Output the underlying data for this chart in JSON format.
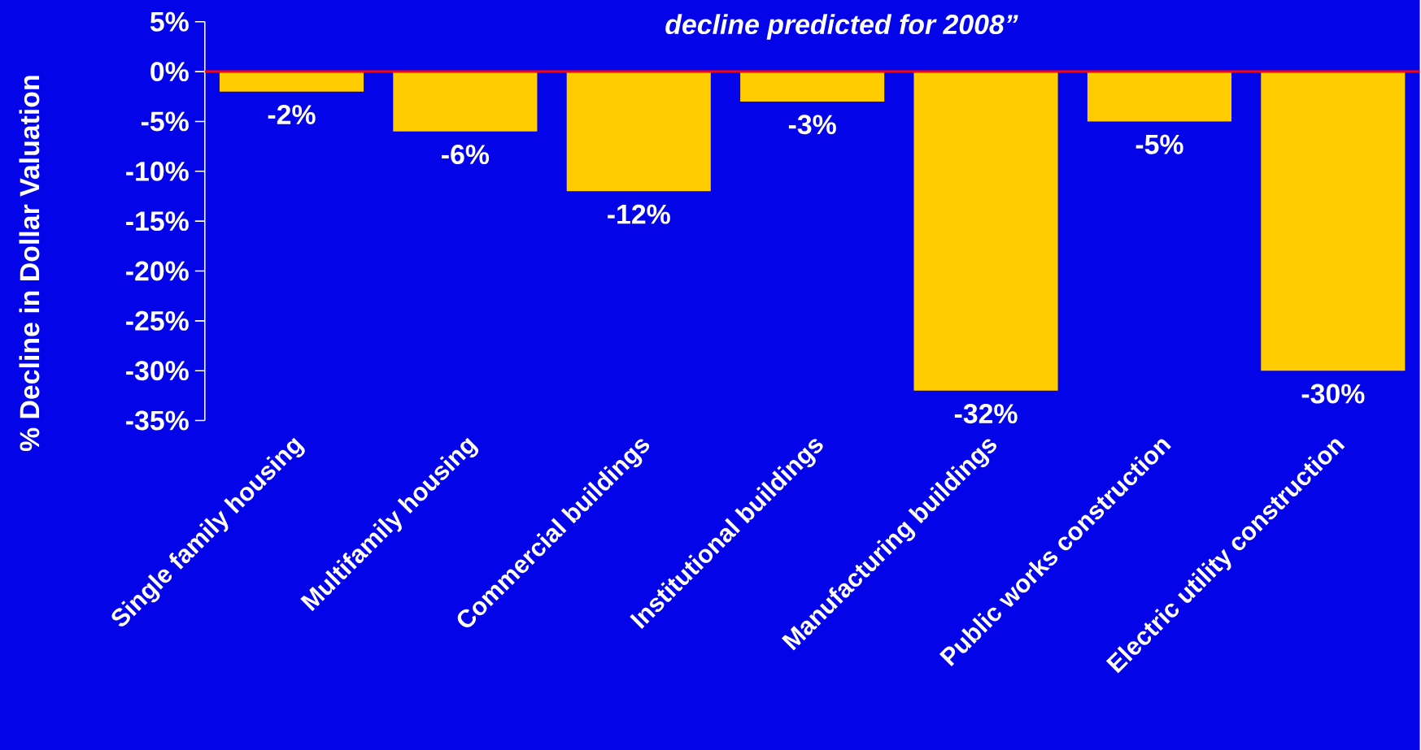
{
  "chart_data": {
    "type": "bar",
    "title": "decline predicted for 2008”",
    "ylabel": "% Decline in Dollar Valuation",
    "categories": [
      "Single family housing",
      "Multifamily housing",
      "Commercial buildings",
      "Institutional buildings",
      "Manufacturing buildings",
      "Public works construction",
      "Electric utility construction"
    ],
    "values": [
      -2,
      -6,
      -12,
      -3,
      -32,
      -5,
      -30
    ],
    "value_labels": [
      "-2%",
      "-6%",
      "-12%",
      "-3%",
      "-32%",
      "-5%",
      "-30%"
    ],
    "color": "#ffcc00",
    "ylim": [
      -35,
      5
    ],
    "yticks": [
      {
        "value": 5,
        "label": "5%"
      },
      {
        "value": 0,
        "label": "0%"
      },
      {
        "value": -5,
        "label": "-5%"
      },
      {
        "value": -10,
        "label": "-10%"
      },
      {
        "value": -15,
        "label": "-15%"
      },
      {
        "value": -20,
        "label": "-20%"
      },
      {
        "value": -25,
        "label": "-25%"
      },
      {
        "value": -30,
        "label": "-30%"
      },
      {
        "value": -35,
        "label": "-35%"
      }
    ],
    "ref_lines": [
      {
        "axis": "y",
        "value": 0,
        "color": "#ff0000"
      }
    ]
  }
}
